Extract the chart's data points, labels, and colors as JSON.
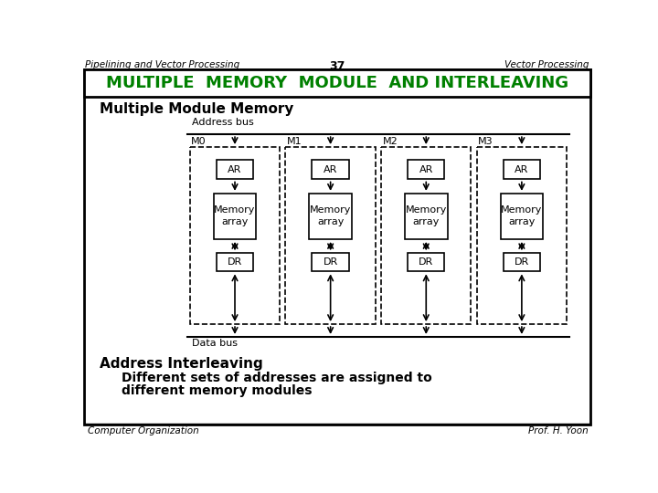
{
  "header_left": "Pipelining and Vector Processing",
  "header_center": "37",
  "header_right": "Vector Processing",
  "title_bar": "MULTIPLE  MEMORY  MODULE  AND INTERLEAVING",
  "title_bar_color": "#008000",
  "section_title": "Multiple Module Memory",
  "address_bus_label": "Address bus",
  "data_bus_label": "Data bus",
  "module_labels": [
    "M0",
    "M1",
    "M2",
    "M3"
  ],
  "ar_label": "AR",
  "memory_label": "Memory\narray",
  "dr_label": "DR",
  "address_interleaving_title": "Address Interleaving",
  "body_text_line1": "Different sets of addresses are assigned to",
  "body_text_line2": "different memory modules",
  "footer_left": "Computer Organization",
  "footer_right": "Prof. H. Yoon",
  "bg_color": "#ffffff"
}
